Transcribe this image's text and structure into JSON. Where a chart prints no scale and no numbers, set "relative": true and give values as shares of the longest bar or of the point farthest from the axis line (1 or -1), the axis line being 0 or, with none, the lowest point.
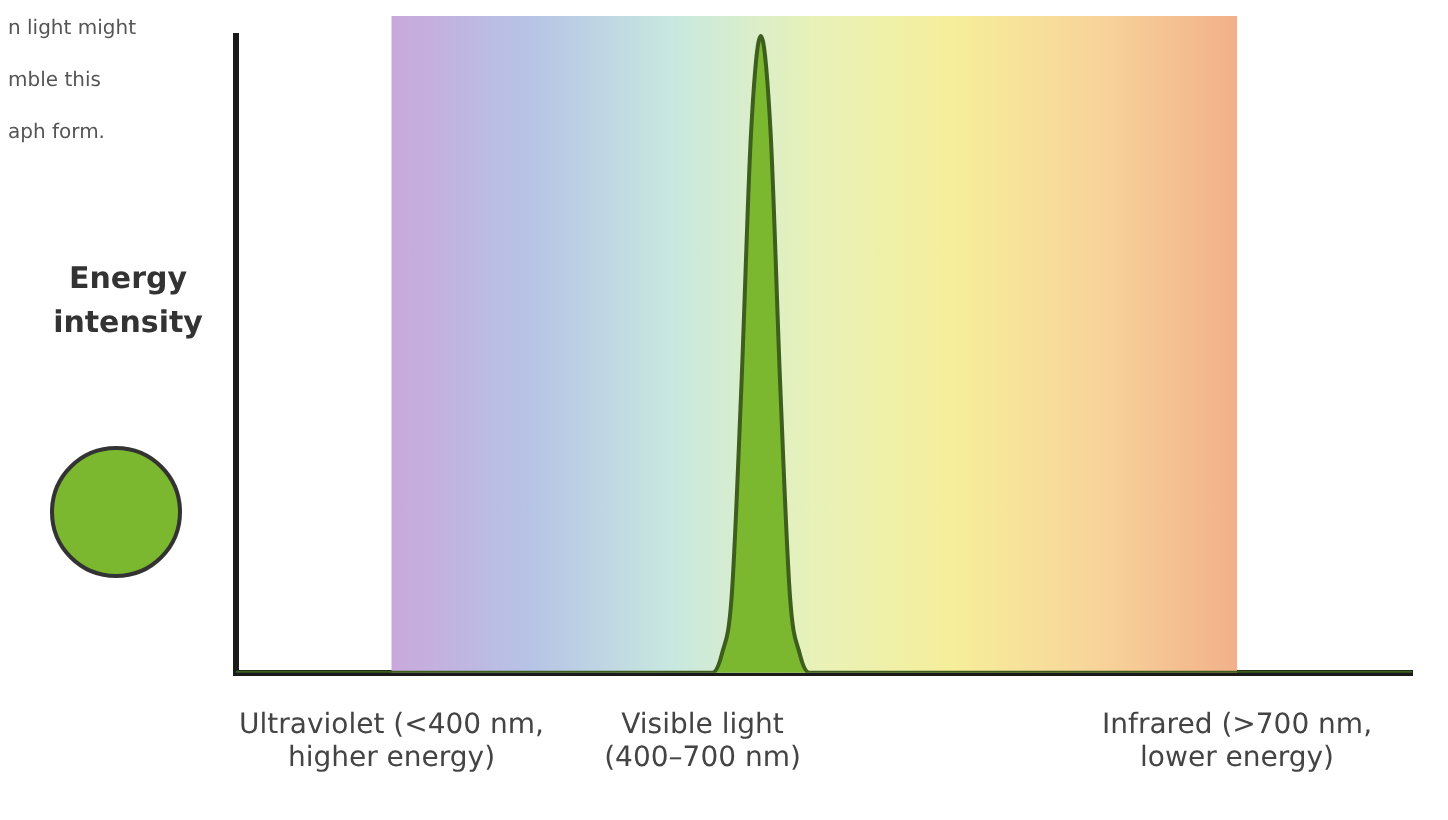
{
  "chart_data": {
    "type": "area",
    "relative": true,
    "ylabel": "Energy intensity",
    "annotations": [
      "n light might\nmble this\naph form."
    ],
    "categories": [
      null,
      null,
      null,
      null,
      null,
      null,
      null,
      null,
      null,
      null,
      null,
      null,
      null,
      null,
      null,
      null,
      "Ultraviolet (<400 nm,\nhigher energy)",
      null,
      null,
      null,
      null,
      null,
      null,
      null,
      null,
      null,
      null,
      null,
      null,
      null,
      null,
      null,
      null,
      null,
      null,
      null,
      null,
      null,
      null,
      null,
      null,
      null,
      null,
      null,
      null,
      null,
      null,
      null,
      "Visible light\n(400–700 nm)",
      null,
      null,
      null,
      null,
      null,
      null,
      null,
      null,
      null,
      null,
      null,
      null,
      null,
      null,
      null,
      null,
      null,
      null,
      null,
      null,
      null,
      null,
      null,
      null,
      null,
      null,
      null,
      null,
      null,
      null,
      null,
      null,
      null,
      null,
      null,
      null,
      null,
      null,
      null,
      null,
      null,
      null,
      null,
      null,
      null,
      null,
      null,
      null,
      null,
      null,
      null,
      null,
      null,
      null,
      "Infrared (>700 nm,\nlower energy)",
      null,
      null,
      null,
      null,
      null,
      null,
      null,
      null,
      null,
      null,
      null,
      null,
      null,
      null,
      null,
      null,
      null,
      null
    ],
    "series": [
      {
        "color": "#7cb82f",
        "values": [
          0,
          0,
          0,
          0,
          0,
          0,
          0,
          0,
          0,
          0,
          0,
          0,
          0,
          0,
          0,
          0,
          0,
          0,
          0,
          0,
          0,
          0,
          0,
          0,
          0,
          0,
          0,
          0,
          0,
          0,
          0,
          0,
          0,
          0,
          0,
          0,
          0,
          0,
          0,
          0,
          0,
          0,
          0,
          0,
          0,
          0,
          0,
          0,
          0,
          0,
          0.03,
          0.12,
          0.45,
          0.85,
          1,
          0.85,
          0.45,
          0.12,
          0.03,
          0,
          0,
          0,
          0,
          0,
          0,
          0,
          0,
          0,
          0,
          0,
          0,
          0,
          0,
          0,
          0,
          0,
          0,
          0,
          0,
          0,
          0,
          0,
          0,
          0,
          0,
          0,
          0,
          0,
          0,
          0,
          0,
          0,
          0,
          0,
          0,
          0,
          0,
          0,
          0,
          0,
          0,
          0,
          0,
          0,
          0,
          0,
          0,
          0,
          0,
          0,
          0,
          0,
          0,
          0,
          0,
          0,
          0,
          0,
          0,
          0,
          0,
          0
        ]
      }
    ],
    "bands": [
      {
        "axis": "x",
        "from": "Ultraviolet (<400 nm,\nhigher energy)",
        "to": "Infrared (>700 nm,\nlower energy)"
      }
    ],
    "grid": false,
    "legend": false,
    "marker": "none"
  }
}
